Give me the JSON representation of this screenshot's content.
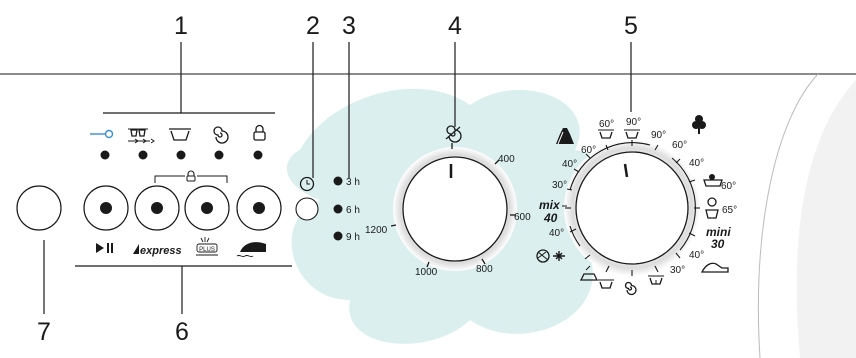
{
  "callouts": [
    "1",
    "2",
    "3",
    "4",
    "5",
    "6",
    "7"
  ],
  "delay_options": [
    "3 h",
    "6 h",
    "9 h"
  ],
  "spin_speeds": [
    "400",
    "600",
    "800",
    "1000",
    "1200"
  ],
  "program_temps": {
    "t60_left": "60°",
    "t40_left": "40°",
    "t30_left": "30°",
    "t40_bottom_left": "40°",
    "t60_top": "60°",
    "t90_top": "90°",
    "t90_right": "90°",
    "t60_right": "60°",
    "t40_right": "40°",
    "t60_right2": "60°",
    "t65_right": "65°",
    "t40_bottom_right": "40°",
    "t30_bottom_right": "30°"
  },
  "program_labels": {
    "mix": "mix",
    "mix_temp": "40",
    "mini": "mini",
    "mini_temp": "30"
  },
  "option_labels": {
    "express": "express",
    "plus": "PLUS"
  },
  "icons": {
    "key": "key-lock-icon",
    "prewash": "prewash-arrows-icon",
    "wash": "wash-tub-icon",
    "spin": "spin-spiral-icon",
    "door": "door-lock-icon",
    "play_pause": "start-pause-icon",
    "express": "express-icon",
    "stain": "stain-plus-icon",
    "iron": "easy-iron-icon",
    "clock": "clock-icon",
    "spin_dial_top": "spin-spiral-icon",
    "cotton": "cotton-flower-icon",
    "synthetic": "synthetic-flask-icon",
    "wool": "wool-ball-icon",
    "delicate": "delicate-flower-icon",
    "baby": "baby-icon",
    "bath": "sports-shoe-icon",
    "rinse": "rinse-tub-icon",
    "drain": "drain-icon"
  },
  "colors": {
    "line": "#1a1a1a",
    "accent_blue": "#3a8fd0",
    "splash": "#cfe9ea"
  }
}
